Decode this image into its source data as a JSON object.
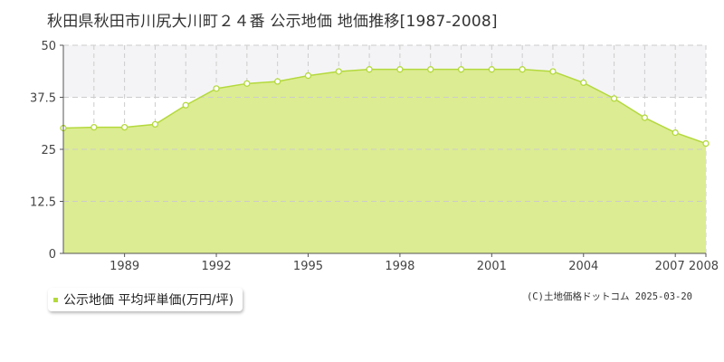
{
  "header": {
    "title": "秋田県秋田市川尻大川町２４番 公示地価 地価推移[1987-2008]"
  },
  "legend": {
    "label": "公示地価 平均坪単価(万円/坪)",
    "swatch_color": "#b4d93d"
  },
  "footer": {
    "copyright": "(C)土地価格ドットコム 2025-03-20"
  },
  "colors": {
    "area_fill": "#dcec92",
    "area_line": "#b4d93d",
    "band_fill": "#f4f4f6",
    "grid": "#cccccc",
    "axis": "#555555",
    "marker_fill": "#ffffff",
    "marker_stroke": "#b4d93d"
  },
  "chart_data": {
    "type": "area",
    "x": [
      1987,
      1988,
      1989,
      1990,
      1991,
      1992,
      1993,
      1994,
      1995,
      1996,
      1997,
      1998,
      1999,
      2000,
      2001,
      2002,
      2003,
      2004,
      2005,
      2006,
      2007,
      2008
    ],
    "series": [
      {
        "values": [
          30.1,
          30.3,
          30.3,
          31.0,
          35.6,
          39.6,
          40.8,
          41.3,
          42.7,
          43.7,
          44.2,
          44.2,
          44.2,
          44.2,
          44.2,
          44.2,
          43.7,
          41.0,
          37.2,
          32.6,
          29.0,
          26.4
        ]
      }
    ],
    "xticks": [
      "1989",
      "1992",
      "1995",
      "1998",
      "2001",
      "2004",
      "2007",
      "2008"
    ],
    "yticks": [
      "0",
      "12.5",
      "25",
      "37.5",
      "50"
    ],
    "xlim": [
      1987,
      2008
    ],
    "ylim": [
      0,
      50
    ],
    "grid": true
  }
}
